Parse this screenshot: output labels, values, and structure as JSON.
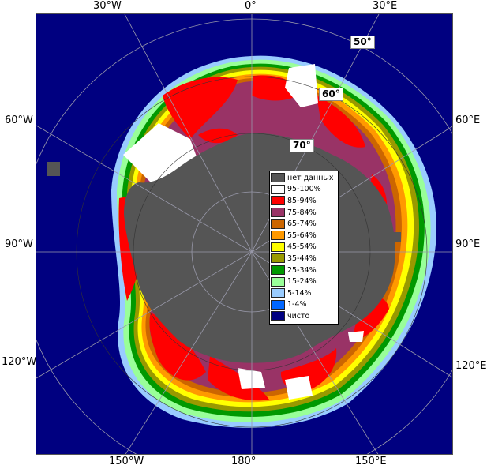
{
  "map": {
    "edge_labels": {
      "top": [
        "30°W",
        "0°",
        "30°E"
      ],
      "left": [
        "60°W",
        "90°W",
        "120°W"
      ],
      "right": [
        "60°E",
        "90°E",
        "120°E"
      ],
      "bottom": [
        "150°W",
        "180°",
        "150°E"
      ]
    },
    "lat_labels": [
      "50°",
      "60°",
      "70°"
    ],
    "colors": {
      "ocean": "#000080",
      "land": "#555555",
      "ice_95": "#ffffff",
      "ice_85": "#ff0000",
      "ice_75": "#993366",
      "ice_65": "#cc6600",
      "ice_55": "#ff9900",
      "ice_45": "#ffff00",
      "ice_35": "#999900",
      "ice_25": "#009900",
      "ice_15": "#99ff99",
      "ice_5": "#99ccff",
      "ice_1": "#0066ff",
      "grid": "#9999aa"
    }
  },
  "legend": {
    "items": [
      {
        "label": "нет данных",
        "color": "#555555"
      },
      {
        "label": "95-100%",
        "color": "#ffffff"
      },
      {
        "label": "85-94%",
        "color": "#ff0000"
      },
      {
        "label": "75-84%",
        "color": "#993366"
      },
      {
        "label": "65-74%",
        "color": "#cc6600"
      },
      {
        "label": "55-64%",
        "color": "#ff9900"
      },
      {
        "label": "45-54%",
        "color": "#ffff00"
      },
      {
        "label": "35-44%",
        "color": "#999900"
      },
      {
        "label": "25-34%",
        "color": "#009900"
      },
      {
        "label": "15-24%",
        "color": "#99ff99"
      },
      {
        "label": "5-14%",
        "color": "#99ccff"
      },
      {
        "label": "1-4%",
        "color": "#0066ff"
      },
      {
        "label": "чисто",
        "color": "#000080"
      }
    ]
  }
}
